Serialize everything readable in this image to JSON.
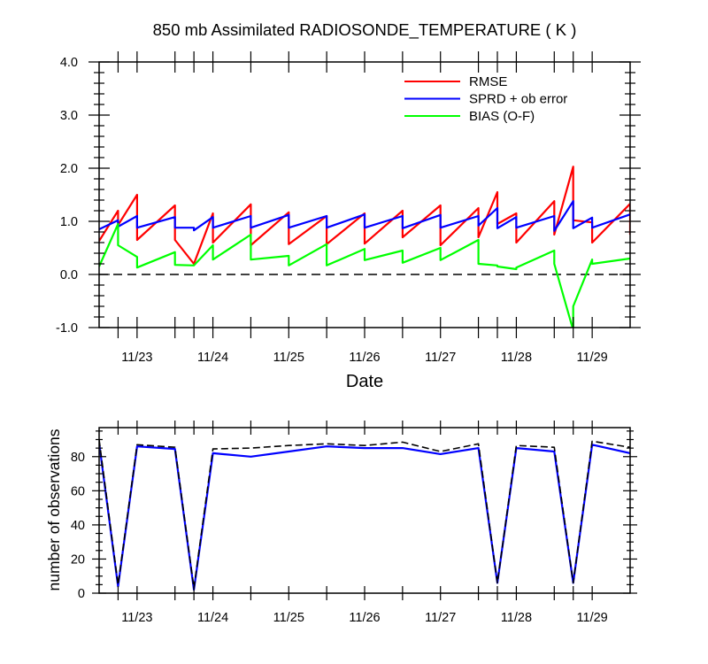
{
  "chart_data": [
    {
      "type": "line",
      "title": "850 mb Assimilated RADIOSONDE_TEMPERATURE ( K )",
      "xlabel": "Date",
      "xlim": [
        22.5,
        29.5
      ],
      "ylim": [
        -1.0,
        4.0
      ],
      "x_ticks": [
        23,
        24,
        25,
        26,
        27,
        28,
        29
      ],
      "x_tick_labels": [
        "11/23",
        "11/24",
        "11/25",
        "11/26",
        "11/27",
        "11/28",
        "11/29"
      ],
      "x_major_ticks": [
        22.75,
        23.0,
        23.5,
        23.75,
        24.0,
        24.5,
        25.0,
        25.5,
        26.0,
        26.5,
        27.0,
        27.5,
        27.75,
        28.0,
        28.5,
        28.75,
        29.0
      ],
      "y_ticks": [
        4.0,
        3.0,
        2.0,
        1.0,
        0.0,
        -1.0
      ],
      "y_tick_labels": [
        "4.0",
        "3.0",
        "2.0",
        "1.0",
        "0.0",
        "-1.0"
      ],
      "y_minor_step": 0.2,
      "reference_line": {
        "y": 0.0,
        "dashed": true,
        "color": "#000000"
      },
      "grid": false,
      "legend": "top-right",
      "series": [
        {
          "name": "RMSE",
          "color": "#ff0000",
          "dashed": false,
          "points": [
            [
              22.5,
              0.63
            ],
            [
              22.75,
              1.2
            ],
            [
              22.75,
              0.93
            ],
            [
              23.0,
              1.5
            ],
            [
              23.0,
              0.65
            ],
            [
              23.5,
              1.3
            ],
            [
              23.5,
              0.65
            ],
            [
              23.75,
              0.2
            ],
            [
              24.0,
              1.15
            ],
            [
              24.0,
              0.6
            ],
            [
              24.5,
              1.32
            ],
            [
              24.5,
              0.55
            ],
            [
              25.0,
              1.17
            ],
            [
              25.0,
              0.57
            ],
            [
              25.5,
              1.1
            ],
            [
              25.5,
              0.57
            ],
            [
              26.0,
              1.15
            ],
            [
              26.0,
              0.58
            ],
            [
              26.5,
              1.2
            ],
            [
              26.5,
              0.7
            ],
            [
              27.0,
              1.3
            ],
            [
              27.0,
              0.55
            ],
            [
              27.5,
              1.25
            ],
            [
              27.5,
              0.7
            ],
            [
              27.75,
              1.55
            ],
            [
              27.75,
              0.95
            ],
            [
              28.0,
              1.15
            ],
            [
              28.0,
              0.6
            ],
            [
              28.5,
              1.38
            ],
            [
              28.5,
              0.75
            ],
            [
              28.75,
              2.03
            ],
            [
              28.75,
              1.02
            ],
            [
              29.0,
              0.98
            ],
            [
              29.0,
              0.6
            ],
            [
              29.5,
              1.33
            ],
            [
              29.5,
              0.75
            ]
          ]
        },
        {
          "name": "SPRD + ob error",
          "color": "#0000ff",
          "dashed": false,
          "points": [
            [
              22.5,
              0.85
            ],
            [
              22.75,
              1.02
            ],
            [
              22.75,
              0.9
            ],
            [
              23.0,
              1.1
            ],
            [
              23.0,
              0.88
            ],
            [
              23.5,
              1.08
            ],
            [
              23.5,
              0.88
            ],
            [
              23.75,
              0.88
            ],
            [
              23.75,
              0.83
            ],
            [
              24.0,
              1.08
            ],
            [
              24.0,
              0.88
            ],
            [
              24.5,
              1.1
            ],
            [
              24.5,
              0.88
            ],
            [
              25.0,
              1.12
            ],
            [
              25.0,
              0.88
            ],
            [
              25.5,
              1.1
            ],
            [
              25.5,
              0.88
            ],
            [
              26.0,
              1.13
            ],
            [
              26.0,
              0.88
            ],
            [
              26.5,
              1.1
            ],
            [
              26.5,
              0.87
            ],
            [
              27.0,
              1.12
            ],
            [
              27.0,
              0.88
            ],
            [
              27.5,
              1.1
            ],
            [
              27.5,
              0.92
            ],
            [
              27.75,
              1.25
            ],
            [
              27.75,
              0.87
            ],
            [
              28.0,
              1.08
            ],
            [
              28.0,
              0.88
            ],
            [
              28.5,
              1.1
            ],
            [
              28.5,
              0.82
            ],
            [
              28.75,
              1.38
            ],
            [
              28.75,
              0.87
            ],
            [
              29.0,
              1.07
            ],
            [
              29.0,
              0.88
            ],
            [
              29.5,
              1.13
            ]
          ]
        },
        {
          "name": "BIAS (O-F)",
          "color": "#00ff00",
          "dashed": false,
          "points": [
            [
              22.5,
              0.15
            ],
            [
              22.75,
              0.95
            ],
            [
              22.75,
              0.55
            ],
            [
              23.0,
              0.33
            ],
            [
              23.0,
              0.13
            ],
            [
              23.5,
              0.42
            ],
            [
              23.5,
              0.18
            ],
            [
              23.75,
              0.17
            ],
            [
              24.0,
              0.55
            ],
            [
              24.0,
              0.28
            ],
            [
              24.5,
              0.75
            ],
            [
              24.5,
              0.28
            ],
            [
              25.0,
              0.35
            ],
            [
              25.0,
              0.17
            ],
            [
              25.5,
              0.57
            ],
            [
              25.5,
              0.17
            ],
            [
              26.0,
              0.48
            ],
            [
              26.0,
              0.27
            ],
            [
              26.5,
              0.45
            ],
            [
              26.5,
              0.22
            ],
            [
              27.0,
              0.5
            ],
            [
              27.0,
              0.27
            ],
            [
              27.5,
              0.65
            ],
            [
              27.5,
              0.2
            ],
            [
              27.75,
              0.17
            ],
            [
              27.75,
              0.15
            ],
            [
              28.0,
              0.1
            ],
            [
              28.0,
              0.13
            ],
            [
              28.5,
              0.45
            ],
            [
              28.5,
              0.2
            ],
            [
              28.75,
              -1.05
            ],
            [
              28.75,
              -0.6
            ],
            [
              29.0,
              0.28
            ],
            [
              29.0,
              0.2
            ],
            [
              29.5,
              0.3
            ]
          ]
        }
      ]
    },
    {
      "type": "line",
      "ylabel": "number of observations",
      "xlim": [
        22.5,
        29.5
      ],
      "ylim": [
        0,
        97
      ],
      "x_ticks": [
        23,
        24,
        25,
        26,
        27,
        28,
        29
      ],
      "x_tick_labels": [
        "11/23",
        "11/24",
        "11/25",
        "11/26",
        "11/27",
        "11/28",
        "11/29"
      ],
      "x_major_ticks": [
        22.75,
        23.0,
        23.5,
        23.75,
        24.0,
        24.5,
        25.0,
        25.5,
        26.0,
        26.5,
        27.0,
        27.5,
        27.75,
        28.0,
        28.5,
        28.75,
        29.0
      ],
      "y_ticks": [
        80,
        60,
        40,
        20,
        0
      ],
      "y_tick_labels": [
        "80",
        "60",
        "40",
        "20",
        "0"
      ],
      "y_minor_step": 5,
      "grid": false,
      "series": [
        {
          "color": "#0000ff",
          "dashed": false,
          "points": [
            [
              22.5,
              88
            ],
            [
              22.75,
              4
            ],
            [
              23.0,
              86
            ],
            [
              23.5,
              84.5
            ],
            [
              23.75,
              2
            ],
            [
              24.0,
              82
            ],
            [
              24.5,
              80
            ],
            [
              25.0,
              83
            ],
            [
              25.5,
              86
            ],
            [
              26.0,
              85
            ],
            [
              26.5,
              85
            ],
            [
              27.0,
              81.5
            ],
            [
              27.5,
              85
            ],
            [
              27.75,
              6
            ],
            [
              28.0,
              85
            ],
            [
              28.5,
              83
            ],
            [
              28.75,
              6
            ],
            [
              29.0,
              87
            ],
            [
              29.5,
              82
            ]
          ]
        },
        {
          "color": "#000000",
          "dashed": true,
          "points": [
            [
              22.5,
              90
            ],
            [
              22.75,
              5
            ],
            [
              23.0,
              87
            ],
            [
              23.5,
              85.5
            ],
            [
              23.75,
              3
            ],
            [
              24.0,
              84.5
            ],
            [
              24.5,
              85
            ],
            [
              25.0,
              86.5
            ],
            [
              25.5,
              87.5
            ],
            [
              26.0,
              86.5
            ],
            [
              26.5,
              88.5
            ],
            [
              27.0,
              83
            ],
            [
              27.5,
              87.5
            ],
            [
              27.75,
              6
            ],
            [
              28.0,
              86.5
            ],
            [
              28.5,
              85.5
            ],
            [
              28.75,
              6
            ],
            [
              29.0,
              89
            ],
            [
              29.5,
              85.5
            ]
          ]
        }
      ]
    }
  ]
}
